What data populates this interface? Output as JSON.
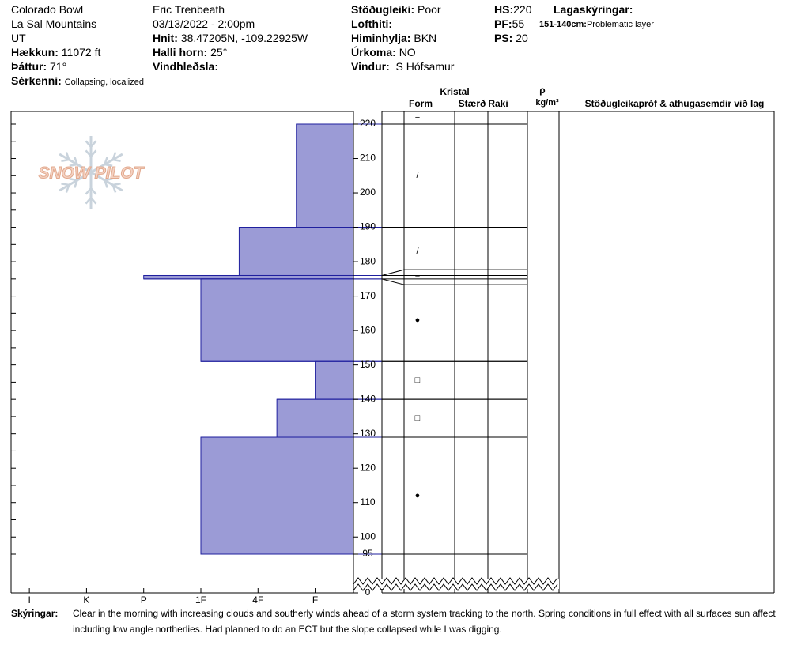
{
  "header": {
    "location": "Colorado Bowl",
    "range": "La Sal Mountains",
    "state": "UT",
    "elevation": {
      "label": "Hækkun:",
      "value": "11072 ft"
    },
    "aspect": {
      "label": "Þáttur:",
      "value": "71°"
    },
    "features": {
      "label": "Sérkenni:",
      "value": "Collapsing, localized"
    },
    "observer": "Eric Trenbeath",
    "datetime": "03/13/2022 - 2:00pm",
    "coords": {
      "label": "Hnit:",
      "value": "38.47205N, -109.22925W"
    },
    "slope": {
      "label": "Halli horn:",
      "value": "25°"
    },
    "wind_loading": {
      "label": "Vindhleðsla:"
    },
    "stability": {
      "label": "Stöðugleiki:",
      "value": "Poor"
    },
    "air_temp": {
      "label": "Lofthiti:"
    },
    "sky": {
      "label": "Himinhylja:",
      "value": "BKN"
    },
    "precip": {
      "label": "Úrkoma:",
      "value": "NO"
    },
    "wind": {
      "label": "Vindur:",
      "value": "S Hófsamur"
    },
    "hs": {
      "label": "HS:",
      "value": 220
    },
    "pf": {
      "label": "PF:",
      "value": 55
    },
    "ps": {
      "label": "PS:",
      "value": 20
    },
    "layer_notes": {
      "label": "Lagaskýringar:",
      "items": [
        {
          "range": "151-140cm:",
          "note": "Problematic layer"
        }
      ]
    }
  },
  "logo": "SNOW PILOT",
  "chart_data": {
    "type": "hardness-profile",
    "xlim": [
      6.32,
      0.33
    ],
    "xticks": [
      {
        "value": 6,
        "label": "I"
      },
      {
        "value": 5,
        "label": "K"
      },
      {
        "value": 4,
        "label": "P"
      },
      {
        "value": 3,
        "label": "1F"
      },
      {
        "value": 2,
        "label": "4F"
      },
      {
        "value": 1,
        "label": "F"
      }
    ],
    "ylim": [
      0,
      220
    ],
    "y_break": [
      0,
      95
    ],
    "yticks": [
      0,
      95,
      100,
      110,
      120,
      130,
      140,
      150,
      160,
      170,
      180,
      190,
      200,
      210,
      220
    ],
    "minor_yticks": [
      95,
      100,
      105,
      110,
      115,
      120,
      125,
      130,
      135,
      140,
      145,
      150,
      155,
      160,
      165,
      170,
      175,
      180,
      185,
      190,
      195,
      200,
      205,
      210,
      215,
      220
    ],
    "color": "#9b9bd6",
    "edge_color": "#1f1f9e",
    "surface_form": "−",
    "layers": [
      {
        "top": 220,
        "bottom": 190,
        "hardness": 1.33,
        "form": "/"
      },
      {
        "top": 190,
        "bottom": 176,
        "hardness": 2.33,
        "form": "/"
      },
      {
        "top": 176,
        "bottom": 175,
        "hardness": 4,
        "form": "−"
      },
      {
        "top": 175,
        "bottom": 151,
        "hardness": 3,
        "form": "●"
      },
      {
        "top": 151,
        "bottom": 140,
        "hardness": 1,
        "form": "□"
      },
      {
        "top": 140,
        "bottom": 129,
        "hardness": 1.67,
        "form": "□"
      },
      {
        "top": 129,
        "bottom": 95,
        "hardness": 3,
        "form": "●"
      }
    ],
    "table_headers": {
      "crystal": "Kristal",
      "form": "Form",
      "size": "Stærð",
      "moisture": "Raki",
      "density_symbol": "ρ",
      "density_unit": "kg/m³",
      "tests": "Stöðugleikapróf & athugasemdir við lag"
    }
  },
  "footer": {
    "label": "Skýringar:",
    "text": "Clear in the morning with increasing clouds and southerly winds ahead of a storm system tracking to the north. Spring conditions in full effect with all surfaces sun affect including low angle northerlies. Had planned to do an ECT but the slope collapsed while I was digging."
  }
}
